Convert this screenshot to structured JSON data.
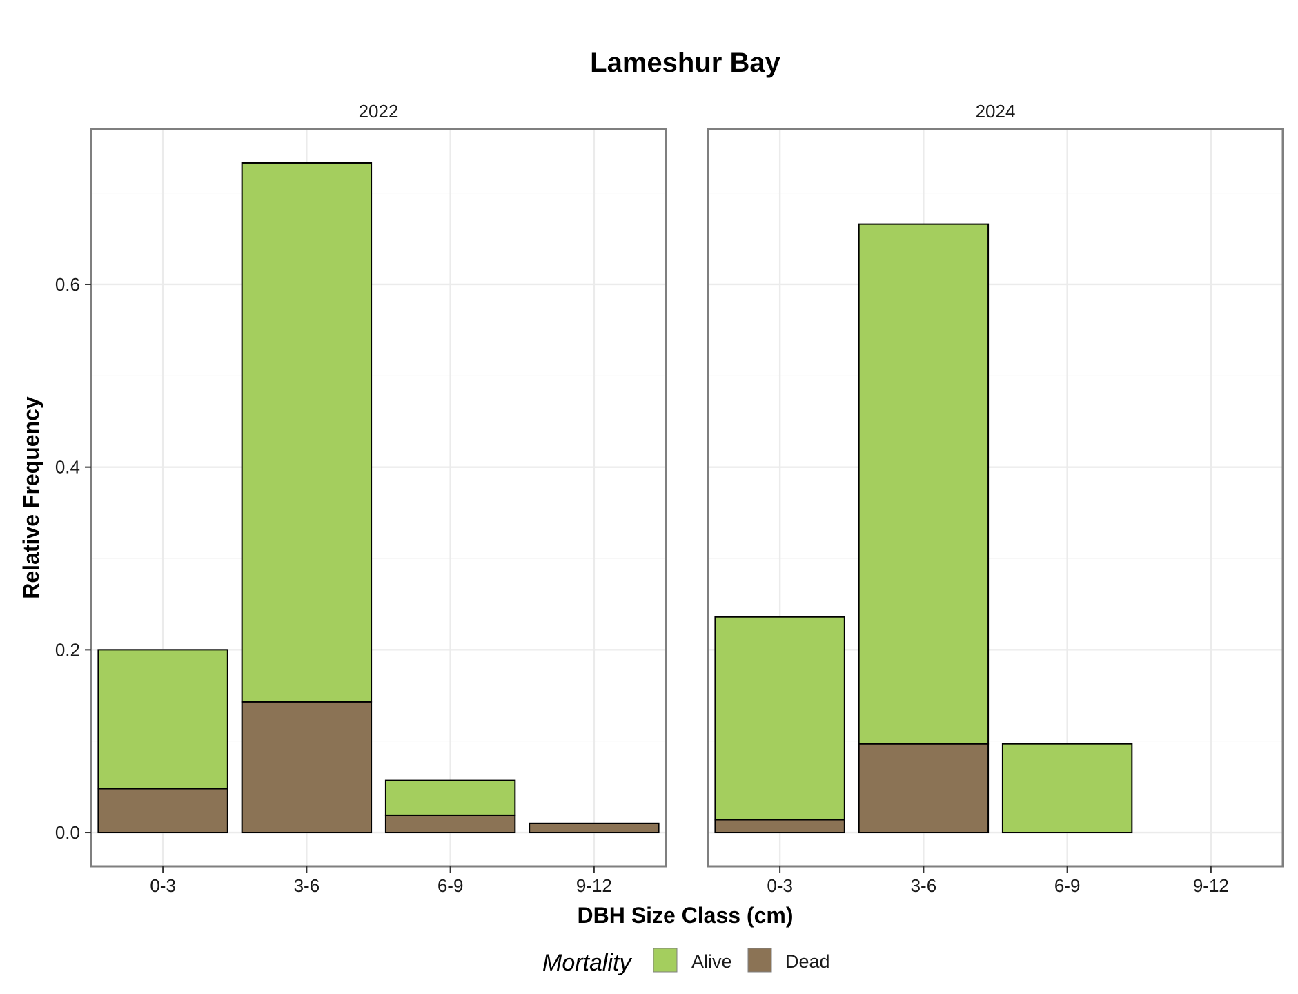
{
  "chart_data": {
    "type": "bar",
    "stacked": true,
    "title": "Lameshur Bay",
    "xlabel": "DBH Size Class (cm)",
    "ylabel": "Relative Frequency",
    "categories": [
      "0-3",
      "3-6",
      "6-9",
      "9-12"
    ],
    "ylim": [
      -0.037,
      0.77
    ],
    "yticks": [
      "0.0",
      "0.2",
      "0.4",
      "0.6"
    ],
    "ytick_values": [
      0.0,
      0.2,
      0.4,
      0.6
    ],
    "grid": true,
    "legend": {
      "title": "Mortality",
      "position": "bottom",
      "entries": [
        "Alive",
        "Dead"
      ]
    },
    "colors": {
      "Alive": "#a4ce5e",
      "Dead": "#8b7355"
    },
    "facets": [
      {
        "label": "2022",
        "series": [
          {
            "name": "Dead",
            "values": [
              0.048,
              0.143,
              0.019,
              0.01
            ]
          },
          {
            "name": "Alive",
            "values": [
              0.152,
              0.59,
              0.038,
              0.0
            ]
          }
        ]
      },
      {
        "label": "2024",
        "series": [
          {
            "name": "Dead",
            "values": [
              0.014,
              0.097,
              0.0,
              0.0
            ]
          },
          {
            "name": "Alive",
            "values": [
              0.222,
              0.569,
              0.097,
              0.0
            ]
          }
        ]
      }
    ]
  }
}
